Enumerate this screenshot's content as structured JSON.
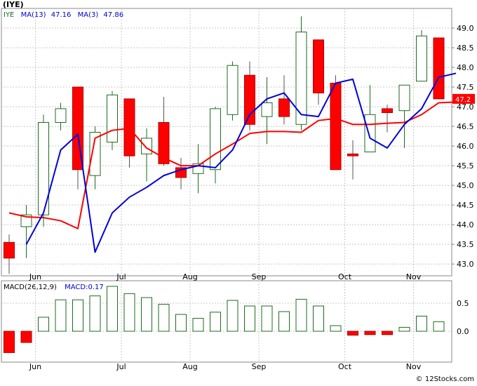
{
  "title": "(IYE)",
  "watermark": "© 12Stocks.com",
  "legend": {
    "ticker": "IYE",
    "ma13_label": "MA(13)",
    "ma13_value": "47.16",
    "ma3_label": "MA(3)",
    "ma3_value": "47.86"
  },
  "macd_legend": {
    "label": "MACD(26,12,9)",
    "value_label": "MACD:0.17"
  },
  "last_price_tag": "47.2",
  "colors": {
    "up_outline": "#1f6b1f",
    "down_fill": "#ff0000",
    "ma13": "#ff0000",
    "ma3": "#0000dd",
    "macd_bar": "#1f6b1f",
    "legend_ticker": "#1f6b1f",
    "legend_text": "#0000cc"
  },
  "chart_data": [
    {
      "type": "candlestick",
      "ylim": [
        42.7,
        49.5
      ],
      "y_ticks": [
        43.0,
        43.5,
        44.0,
        44.5,
        45.0,
        45.5,
        46.0,
        46.5,
        47.0,
        47.5,
        48.0,
        48.5,
        49.0
      ],
      "x_ticks": [
        {
          "label": "Jun",
          "index": 1
        },
        {
          "label": "Jul",
          "index": 6
        },
        {
          "label": "Aug",
          "index": 10
        },
        {
          "label": "Sep",
          "index": 14
        },
        {
          "label": "Oct",
          "index": 19
        },
        {
          "label": "Nov",
          "index": 23
        }
      ],
      "candles": [
        {
          "o": 43.55,
          "h": 43.75,
          "l": 42.75,
          "c": 43.15
        },
        {
          "o": 43.95,
          "h": 44.5,
          "l": 43.15,
          "c": 44.25
        },
        {
          "o": 44.25,
          "h": 46.8,
          "l": 43.95,
          "c": 46.6
        },
        {
          "o": 46.6,
          "h": 47.1,
          "l": 46.4,
          "c": 46.95
        },
        {
          "o": 47.5,
          "h": 47.5,
          "l": 44.9,
          "c": 45.4
        },
        {
          "o": 45.25,
          "h": 46.5,
          "l": 44.9,
          "c": 46.35
        },
        {
          "o": 46.1,
          "h": 47.4,
          "l": 45.9,
          "c": 47.3
        },
        {
          "o": 47.2,
          "h": 47.2,
          "l": 45.45,
          "c": 45.75
        },
        {
          "o": 45.8,
          "h": 46.45,
          "l": 45.1,
          "c": 46.2
        },
        {
          "o": 46.6,
          "h": 47.25,
          "l": 45.5,
          "c": 45.55
        },
        {
          "o": 45.45,
          "h": 45.7,
          "l": 44.9,
          "c": 45.2
        },
        {
          "o": 45.3,
          "h": 46.05,
          "l": 44.8,
          "c": 45.55
        },
        {
          "o": 45.4,
          "h": 47.0,
          "l": 45.05,
          "c": 46.95
        },
        {
          "o": 46.8,
          "h": 48.15,
          "l": 46.65,
          "c": 48.05
        },
        {
          "o": 47.8,
          "h": 48.15,
          "l": 46.4,
          "c": 46.55
        },
        {
          "o": 46.75,
          "h": 47.75,
          "l": 46.05,
          "c": 47.1
        },
        {
          "o": 47.2,
          "h": 47.8,
          "l": 46.55,
          "c": 46.75
        },
        {
          "o": 46.55,
          "h": 49.3,
          "l": 46.4,
          "c": 48.9
        },
        {
          "o": 48.7,
          "h": 48.7,
          "l": 47.05,
          "c": 47.35
        },
        {
          "o": 47.6,
          "h": 47.8,
          "l": 45.4,
          "c": 45.4
        },
        {
          "o": 45.8,
          "h": 46.15,
          "l": 45.15,
          "c": 45.75
        },
        {
          "o": 45.85,
          "h": 47.55,
          "l": 45.85,
          "c": 46.8
        },
        {
          "o": 46.95,
          "h": 47.05,
          "l": 46.35,
          "c": 46.85
        },
        {
          "o": 46.9,
          "h": 47.55,
          "l": 45.95,
          "c": 47.55
        },
        {
          "o": 47.65,
          "h": 48.95,
          "l": 47.65,
          "c": 48.8
        },
        {
          "o": 48.75,
          "h": 48.75,
          "l": 47.2,
          "c": 47.2
        }
      ],
      "series": [
        {
          "name": "MA(13)",
          "start_index": 0,
          "values": [
            44.3,
            44.2,
            44.18,
            44.1,
            43.9,
            46.2,
            46.4,
            46.45,
            45.95,
            45.7,
            45.5,
            45.5,
            45.8,
            46.05,
            46.32,
            46.37,
            46.37,
            46.35,
            46.65,
            46.7,
            46.55,
            46.55,
            46.58,
            46.6,
            46.8,
            47.1,
            47.12
          ]
        },
        {
          "name": "MA(3)",
          "start_index": 1,
          "values": [
            43.5,
            44.3,
            45.9,
            46.3,
            43.3,
            44.3,
            44.7,
            44.95,
            45.25,
            45.4,
            45.5,
            45.45,
            45.9,
            46.8,
            47.2,
            47.35,
            46.8,
            46.75,
            47.6,
            47.7,
            46.2,
            45.95,
            46.55,
            46.95,
            47.75,
            47.85
          ]
        }
      ]
    },
    {
      "type": "bar",
      "title": "MACD(26,12,9)",
      "ylim": [
        -0.55,
        0.9
      ],
      "y_ticks": [
        0.0,
        0.5
      ],
      "values": [
        -0.38,
        -0.2,
        0.25,
        0.56,
        0.56,
        0.63,
        0.8,
        0.67,
        0.6,
        0.48,
        0.3,
        0.23,
        0.34,
        0.55,
        0.45,
        0.45,
        0.35,
        0.57,
        0.45,
        0.1,
        -0.07,
        -0.06,
        -0.06,
        0.07,
        0.27,
        0.17
      ]
    }
  ]
}
